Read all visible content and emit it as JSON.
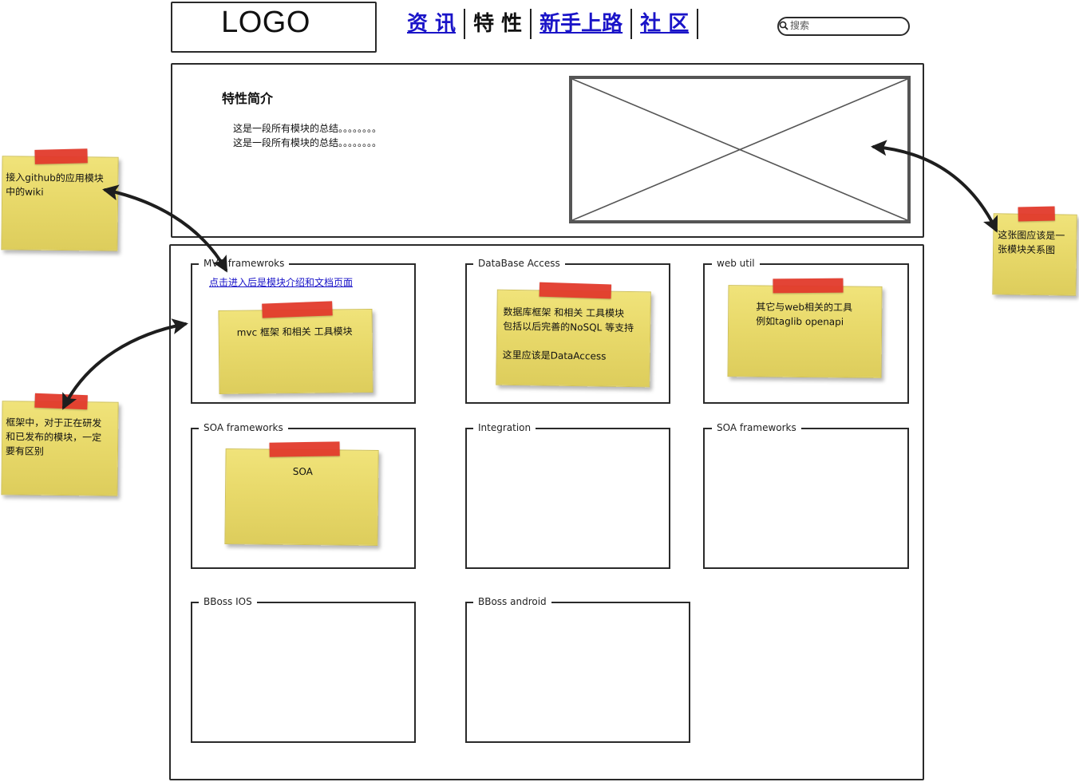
{
  "header": {
    "logo": "LOGO",
    "nav": [
      {
        "label": "资 讯",
        "current": false
      },
      {
        "label": "特 性",
        "current": true
      },
      {
        "label": "新手上路",
        "current": false
      },
      {
        "label": "社 区",
        "current": false
      }
    ],
    "search": {
      "placeholder": "搜索",
      "icon": "search-icon"
    }
  },
  "intro": {
    "title": "特性简介",
    "lines": [
      "这是一段所有模块的总结。。。。。。。。",
      "这是一段所有模块的总结。。。。。。。。"
    ],
    "image_placeholder": "image-placeholder-icon"
  },
  "modules": {
    "groups": [
      {
        "title": "MVC framewroks"
      },
      {
        "title": "DataBase Access"
      },
      {
        "title": "web  util"
      },
      {
        "title": "SOA frameworks"
      },
      {
        "title": "Integration"
      },
      {
        "title": "SOA frameworks"
      },
      {
        "title": "BBoss IOS"
      },
      {
        "title": "BBoss android"
      }
    ],
    "mvc_link": "点击进入后是模块介绍和文档页面"
  },
  "notes": {
    "mvc": "mvc 框架 和相关 工具模块",
    "db": "数据库框架 和相关 工具模块\n包括以后完善的NoSQL  等支持\n\n这里应该是DataAccess",
    "web": "其它与web相关的工具\n例如taglib openapi",
    "soa": "SOA",
    "github": "接入github的应用模块\n中的wiki",
    "framework": "框架中，对于正在研发\n和已发布的模块，一定\n要有区别",
    "diagram": "这张图应该是一\n张模块关系图"
  },
  "colors": {
    "link": "#1a14c8",
    "note": "#e8d96a",
    "tape": "#e23a2c"
  }
}
